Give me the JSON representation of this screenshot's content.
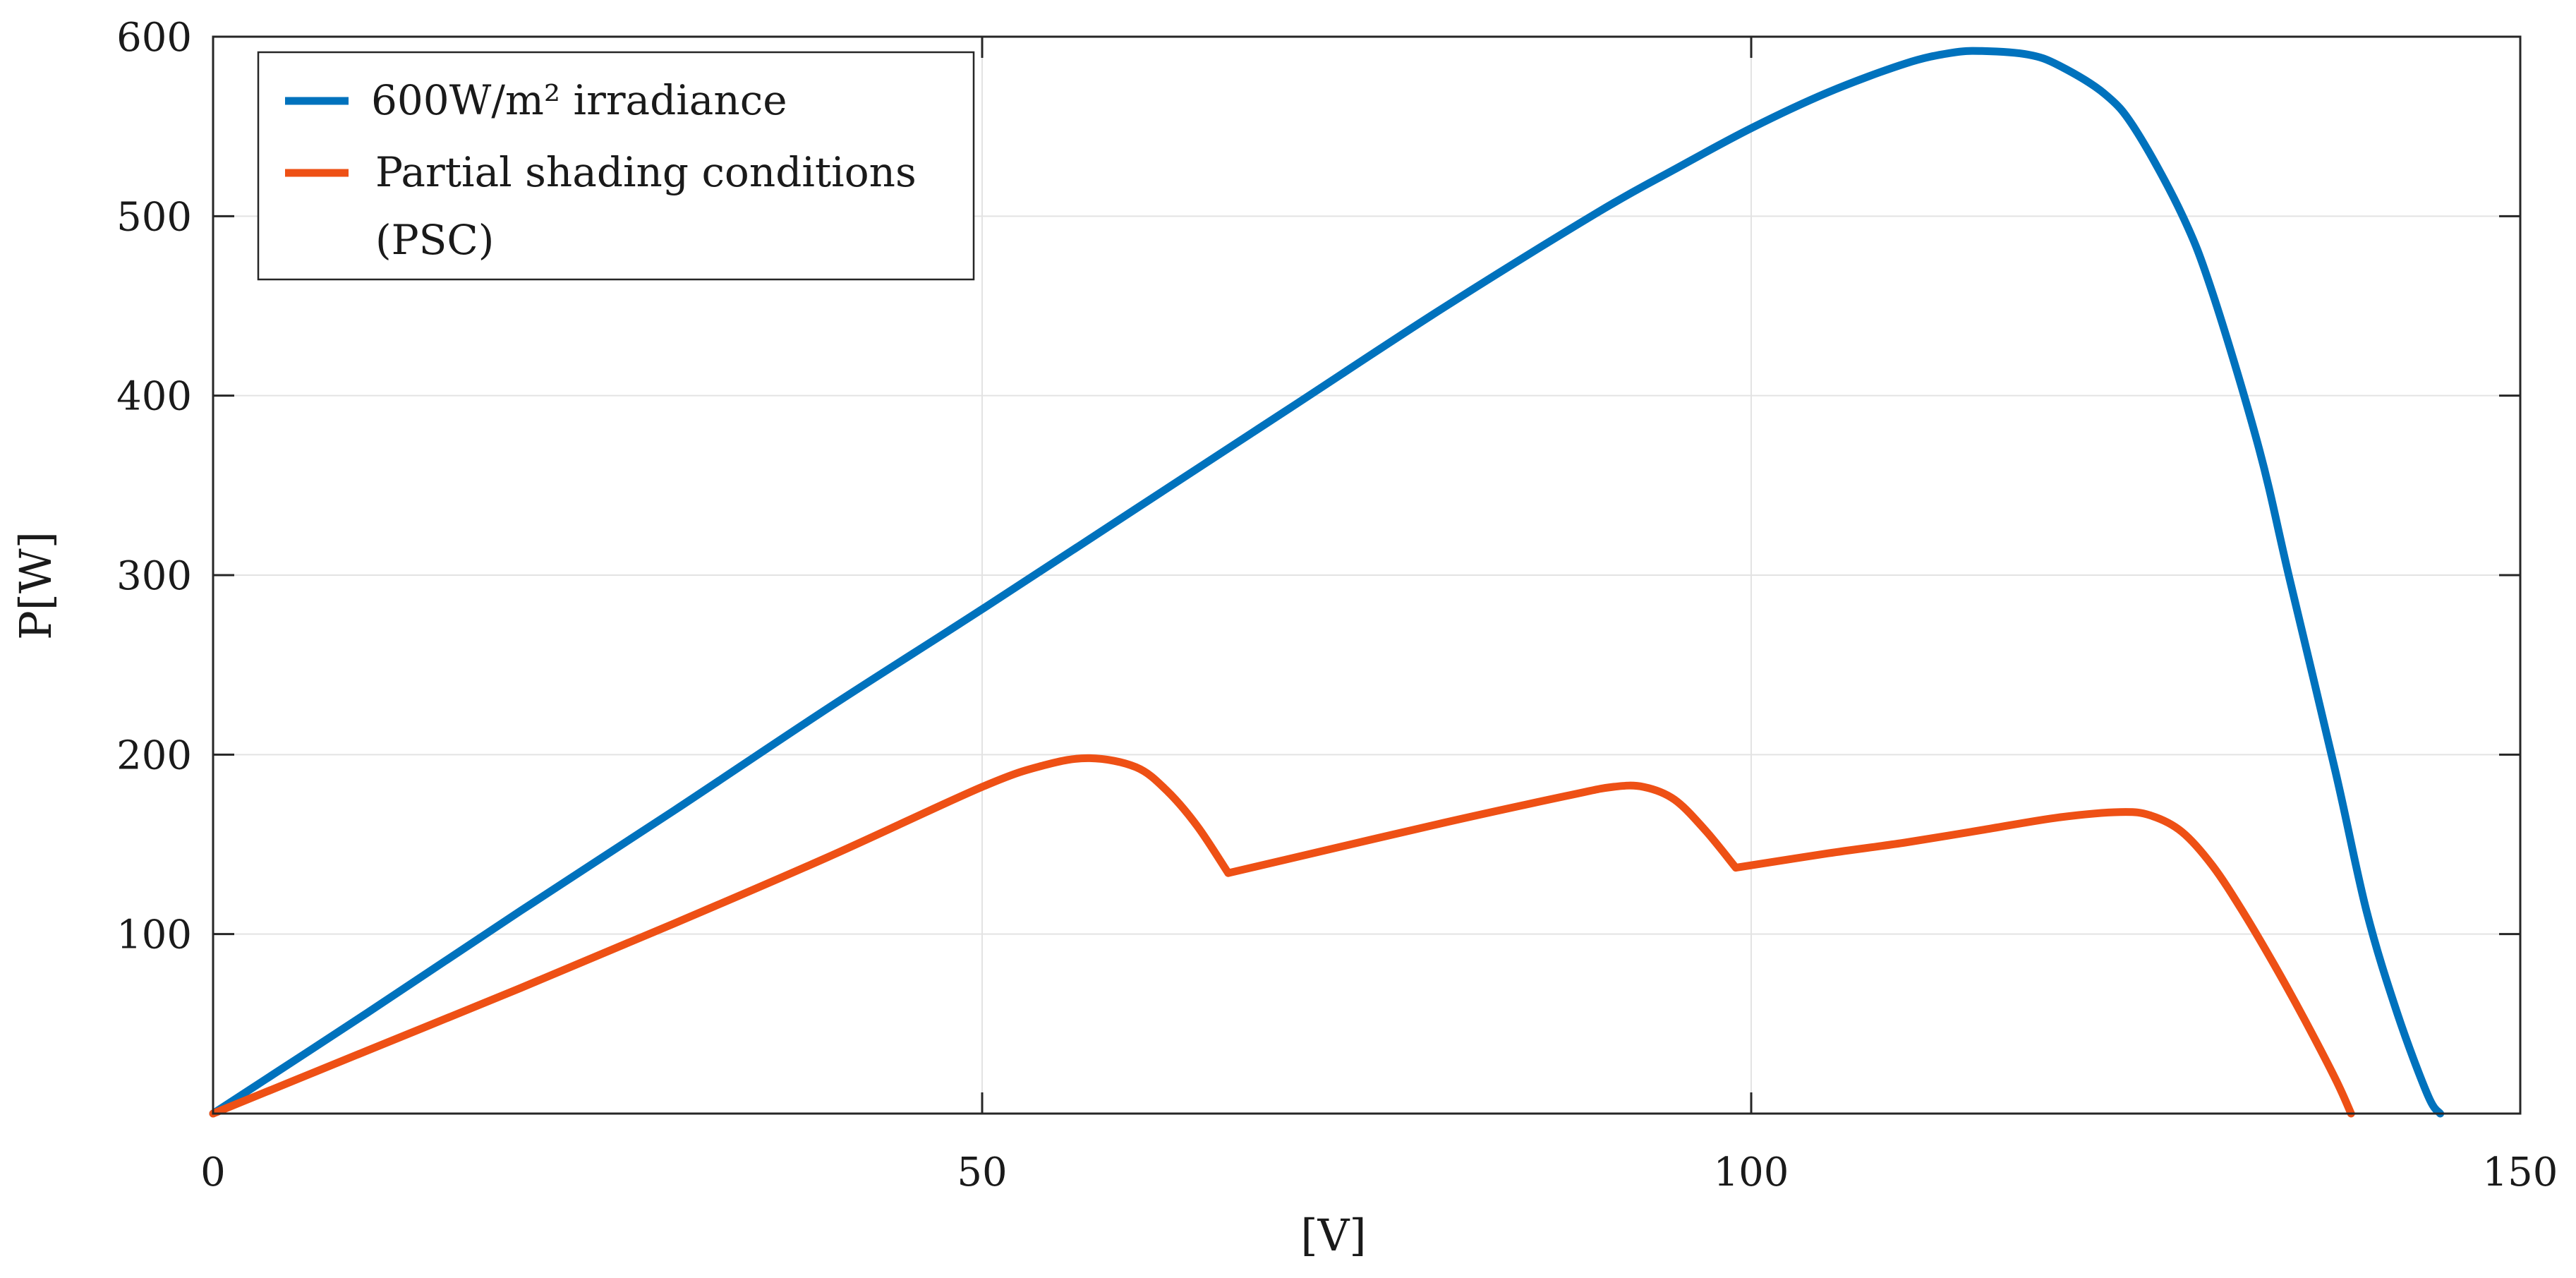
{
  "chart_data": {
    "type": "line",
    "title": "",
    "xlabel": "[V]",
    "ylabel": "P[W]",
    "xlim": [
      0,
      150
    ],
    "ylim": [
      0,
      600
    ],
    "xticks": [
      0,
      50,
      100,
      150
    ],
    "yticks": [
      100,
      200,
      300,
      400,
      500,
      600
    ],
    "grid": true,
    "legend_position": "top-left",
    "series": [
      {
        "name": "600W/m² irradiance",
        "legend_line1": "600W/m² irradiance",
        "legend_line2": "",
        "color": "#0072BD",
        "x": [
          0,
          10,
          20,
          30,
          40,
          50,
          60,
          70,
          80,
          90,
          95,
          100,
          105,
          110,
          113,
          115,
          118,
          120,
          123,
          125,
          128,
          130,
          133,
          135,
          138,
          140,
          142,
          144,
          144.8
        ],
        "y": [
          0,
          56,
          113,
          169,
          226,
          281,
          337,
          393,
          449,
          502,
          526,
          549,
          569,
          585,
          591,
          592,
          590,
          584,
          568,
          548,
          501,
          457,
          371,
          298,
          190,
          113,
          56,
          10,
          0
        ]
      },
      {
        "name": "Partial shading conditions (PSC)",
        "legend_line1": "Partial shading conditions",
        "legend_line2": "(PSC)",
        "color": "#EE5015",
        "x": [
          0,
          10,
          20,
          30,
          40,
          50,
          54,
          57,
          60,
          62,
          64,
          66,
          70,
          80,
          88,
          91,
          93,
          95,
          97,
          99,
          105,
          110,
          115,
          120,
          124,
          126,
          128,
          130,
          132,
          134,
          136,
          138,
          139
        ],
        "y": [
          0,
          35,
          70,
          106,
          143,
          182,
          194,
          198,
          193,
          180,
          160,
          134,
          142,
          162,
          177,
          182,
          182,
          175,
          158,
          137,
          145,
          151,
          158,
          165,
          168,
          166,
          157,
          138,
          112,
          83,
          52,
          19,
          0
        ]
      }
    ]
  }
}
